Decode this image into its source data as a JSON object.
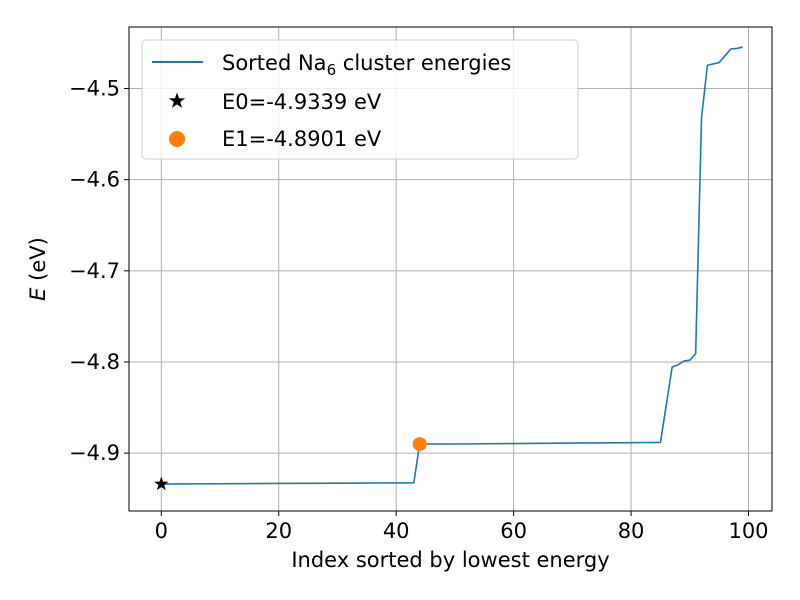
{
  "chart_data": {
    "type": "line",
    "xlabel": "Index sorted by lowest energy",
    "ylabel_prefix": "E",
    "ylabel_suffix": " (eV)",
    "xlim": [
      -5.5,
      104
    ],
    "ylim": [
      -4.9635,
      -4.4325
    ],
    "xticks": [
      0,
      20,
      40,
      60,
      80,
      100
    ],
    "yticks": [
      -4.9,
      -4.8,
      -4.7,
      -4.6,
      -4.5
    ],
    "ytick_labels": [
      "−4.9",
      "−4.8",
      "−4.7",
      "−4.6",
      "−4.5"
    ],
    "grid": true,
    "legend_position": "top-left",
    "series": [
      {
        "kind": "line",
        "name_base": "Sorted Na",
        "name_sub": "6",
        "name_rest": " cluster energies",
        "color": "#1f77b4",
        "x": [
          0,
          10,
          20,
          30,
          40,
          43,
          44,
          50,
          60,
          70,
          80,
          85,
          87,
          88,
          89,
          90,
          91,
          92,
          93,
          95,
          97,
          98,
          99
        ],
        "y": [
          -4.9339,
          -4.9336,
          -4.9333,
          -4.933,
          -4.9327,
          -4.9326,
          -4.8901,
          -4.89,
          -4.8895,
          -4.889,
          -4.8885,
          -4.8883,
          -4.8055,
          -4.803,
          -4.799,
          -4.798,
          -4.791,
          -4.532,
          -4.4745,
          -4.4715,
          -4.4565,
          -4.456,
          -4.4545
        ]
      },
      {
        "kind": "marker",
        "name": "E0=-4.9339 eV",
        "marker": "star",
        "color": "#000000",
        "x": [
          0
        ],
        "y": [
          -4.9339
        ]
      },
      {
        "kind": "marker",
        "name": "E1=-4.8901 eV",
        "marker": "circle",
        "color": "#ff7f0e",
        "x": [
          44
        ],
        "y": [
          -4.8901
        ]
      }
    ]
  }
}
